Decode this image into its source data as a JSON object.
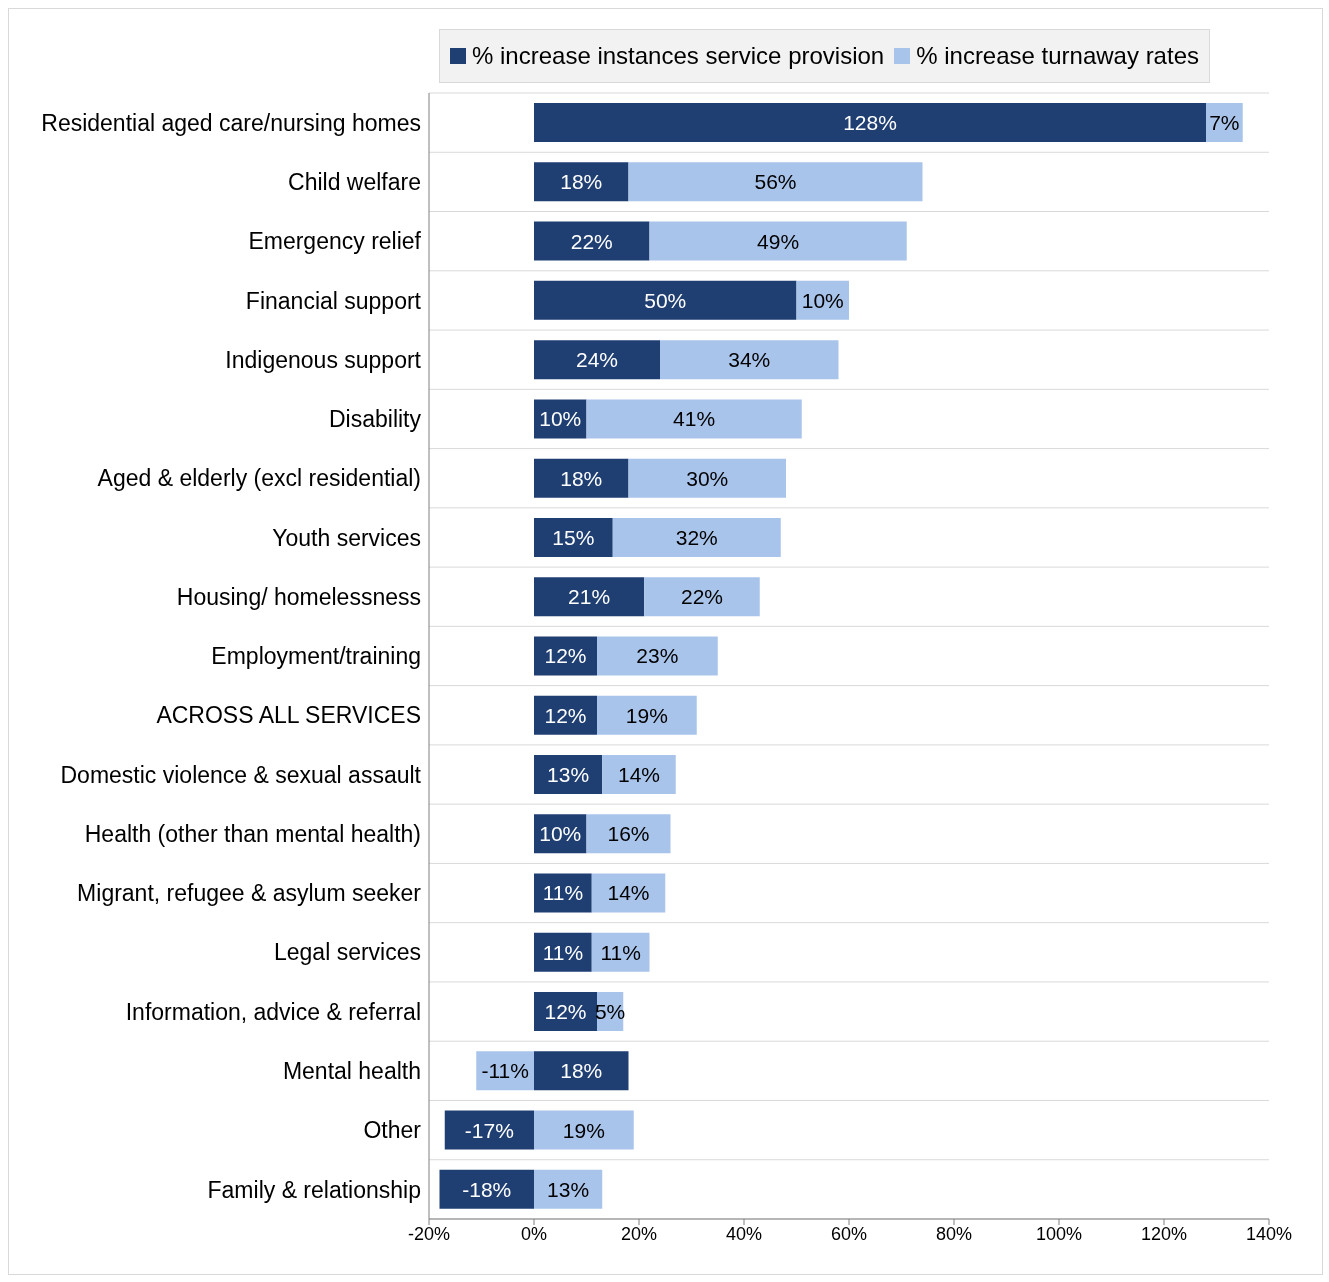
{
  "chart_data": {
    "type": "bar",
    "orientation": "horizontal",
    "stacked": true,
    "legend": "top",
    "grid": "y",
    "categories": [
      "Residential aged care/nursing homes",
      "Child welfare",
      "Emergency relief",
      "Financial support",
      "Indigenous support",
      "Disability",
      "Aged & elderly (excl residential)",
      "Youth services",
      "Housing/ homelessness",
      "Employment/training",
      "ACROSS ALL SERVICES",
      "Domestic violence & sexual assault",
      "Health (other than mental health)",
      "Migrant, refugee & asylum seeker",
      "Legal services",
      "Information, advice & referral",
      "Mental health",
      "Other",
      "Family & relationship"
    ],
    "series": [
      {
        "name": "% increase instances service provision",
        "color": "#1f3f73",
        "values": [
          128,
          18,
          22,
          50,
          24,
          10,
          18,
          15,
          21,
          12,
          12,
          13,
          10,
          11,
          11,
          12,
          18,
          -17,
          -18
        ],
        "value_labels": [
          "128%",
          "18%",
          "22%",
          "50%",
          "24%",
          "10%",
          "18%",
          "15%",
          "21%",
          "12%",
          "12%",
          "13%",
          "10%",
          "11%",
          "11%",
          "12%",
          "18%",
          "-17%",
          "-18%"
        ]
      },
      {
        "name": "% increase turnaway rates",
        "color": "#a9c4eb",
        "values": [
          7,
          56,
          49,
          10,
          34,
          41,
          30,
          32,
          22,
          23,
          19,
          14,
          16,
          14,
          11,
          5,
          -11,
          19,
          13
        ],
        "value_labels": [
          "7%",
          "56%",
          "49%",
          "10%",
          "34%",
          "41%",
          "30%",
          "32%",
          "22%",
          "23%",
          "19%",
          "14%",
          "16%",
          "14%",
          "11%",
          "5%",
          "-11%",
          "19%",
          "13%"
        ]
      }
    ],
    "xlim": [
      -20,
      140
    ],
    "xticks": [
      {
        "value": -20,
        "label": "-20%"
      },
      {
        "value": 0,
        "label": "0%"
      },
      {
        "value": 20,
        "label": "20%"
      },
      {
        "value": 40,
        "label": "40%"
      },
      {
        "value": 60,
        "label": "60%"
      },
      {
        "value": 80,
        "label": "80%"
      },
      {
        "value": 100,
        "label": "100%"
      },
      {
        "value": 120,
        "label": "120%"
      },
      {
        "value": 140,
        "label": "140%"
      }
    ]
  }
}
